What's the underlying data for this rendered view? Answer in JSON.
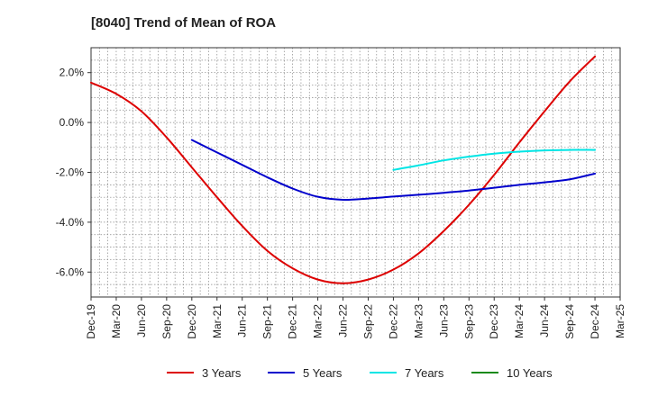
{
  "chart_data": {
    "type": "line",
    "title": "[8040]  Trend of Mean of ROA",
    "xlabel": "",
    "ylabel": "",
    "x_ticks": [
      "Dec-19",
      "Mar-20",
      "Jun-20",
      "Sep-20",
      "Dec-20",
      "Mar-21",
      "Jun-21",
      "Sep-21",
      "Dec-21",
      "Mar-22",
      "Jun-22",
      "Sep-22",
      "Dec-22",
      "Mar-23",
      "Jun-23",
      "Sep-23",
      "Dec-23",
      "Mar-24",
      "Jun-24",
      "Sep-24",
      "Dec-24",
      "Mar-25"
    ],
    "y_ticks": [
      2.0,
      0.0,
      -2.0,
      -4.0,
      -6.0
    ],
    "y_tick_labels": [
      "2.0%",
      "0.0%",
      "-2.0%",
      "-4.0%",
      "-6.0%"
    ],
    "ylim": [
      -7.0,
      3.0
    ],
    "grid": true,
    "legend_position": "bottom",
    "series": [
      {
        "name": "3 Years",
        "color": "#dd0000",
        "x": [
          "Dec-19",
          "Mar-20",
          "Jun-20",
          "Sep-20",
          "Dec-20",
          "Mar-21",
          "Jun-21",
          "Sep-21",
          "Dec-21",
          "Mar-22",
          "Jun-22",
          "Sep-22",
          "Dec-22",
          "Mar-23",
          "Jun-23",
          "Sep-23",
          "Dec-23",
          "Mar-24",
          "Jun-24",
          "Sep-24",
          "Dec-24"
        ],
        "values": [
          1.6,
          1.15,
          0.45,
          -0.6,
          -1.8,
          -3.0,
          -4.15,
          -5.15,
          -5.85,
          -6.3,
          -6.45,
          -6.3,
          -5.9,
          -5.25,
          -4.35,
          -3.3,
          -2.1,
          -0.8,
          0.45,
          1.65,
          2.65
        ]
      },
      {
        "name": "5 Years",
        "color": "#0000cc",
        "x": [
          "Dec-20",
          "Mar-21",
          "Jun-21",
          "Sep-21",
          "Dec-21",
          "Mar-22",
          "Jun-22",
          "Sep-22",
          "Dec-22",
          "Mar-23",
          "Jun-23",
          "Sep-23",
          "Dec-23",
          "Mar-24",
          "Jun-24",
          "Sep-24",
          "Dec-24"
        ],
        "values": [
          -0.7,
          -1.2,
          -1.7,
          -2.2,
          -2.65,
          -2.98,
          -3.1,
          -3.05,
          -2.97,
          -2.9,
          -2.82,
          -2.73,
          -2.62,
          -2.5,
          -2.4,
          -2.28,
          -2.05
        ]
      },
      {
        "name": "7 Years",
        "color": "#00e5e5",
        "x": [
          "Dec-22",
          "Mar-23",
          "Jun-23",
          "Sep-23",
          "Dec-23",
          "Mar-24",
          "Jun-24",
          "Sep-24",
          "Dec-24"
        ],
        "values": [
          -1.9,
          -1.72,
          -1.52,
          -1.37,
          -1.25,
          -1.17,
          -1.12,
          -1.1,
          -1.1
        ]
      },
      {
        "name": "10 Years",
        "color": "#1a8a1a",
        "x": [],
        "values": []
      }
    ]
  }
}
